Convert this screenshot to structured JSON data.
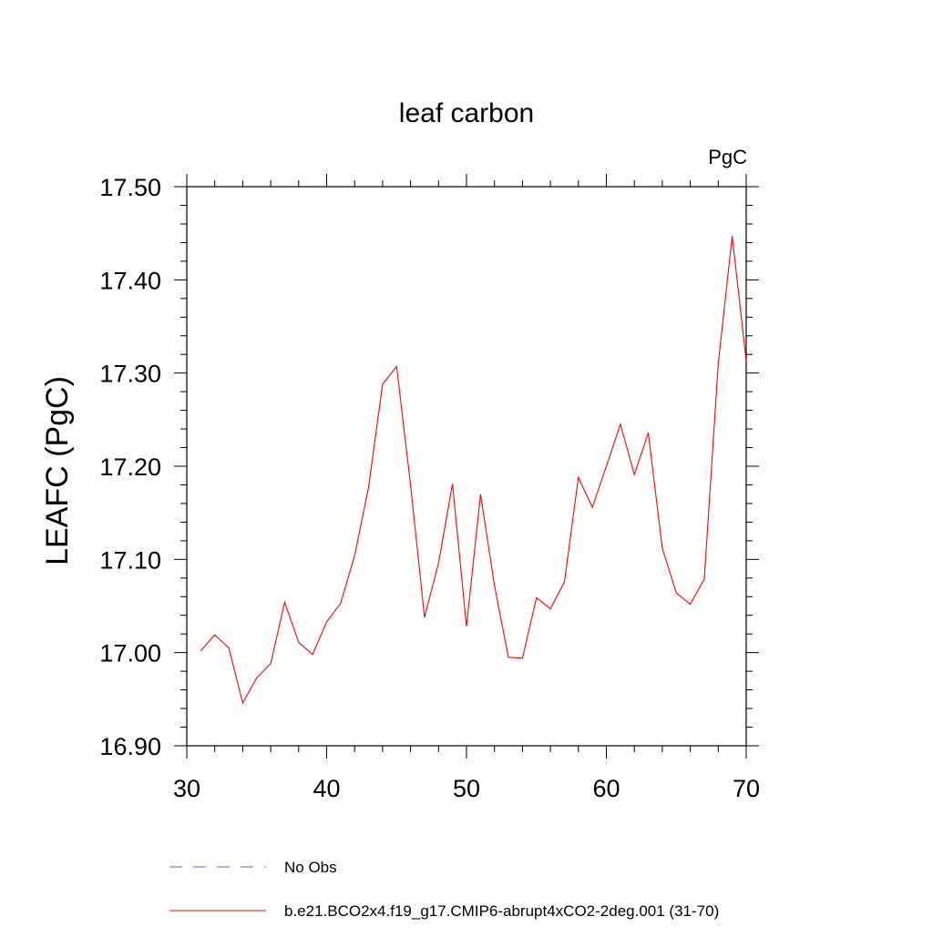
{
  "chart_data": {
    "type": "line",
    "title": "leaf carbon",
    "units_label": "PgC",
    "ylabel": "LEAFC  (PgC)",
    "xlabel": "",
    "xlim": [
      30,
      70
    ],
    "ylim": [
      16.9,
      17.5
    ],
    "x_ticks": [
      "30",
      "40",
      "50",
      "60",
      "70"
    ],
    "y_ticks": [
      "16.90",
      "17.00",
      "17.10",
      "17.20",
      "17.30",
      "17.40",
      "17.50"
    ],
    "grid": false,
    "legend_position": "bottom",
    "series": [
      {
        "name": "No Obs",
        "color": "#6a5acd",
        "style": "dashed",
        "x": [],
        "y": []
      },
      {
        "name": "b.e21.BCO2x4.f19_g17.CMIP6-abrupt4xCO2-2deg.001 (31-70)",
        "color": "#ff0000",
        "style": "solid",
        "x": [
          31,
          32,
          33,
          34,
          35,
          36,
          37,
          38,
          39,
          40,
          41,
          42,
          43,
          44,
          45,
          46,
          47,
          48,
          49,
          50,
          51,
          52,
          53,
          54,
          55,
          56,
          57,
          58,
          59,
          60,
          61,
          62,
          63,
          64,
          65,
          66,
          67,
          68,
          69,
          70
        ],
        "y": [
          17.002,
          17.019,
          17.005,
          16.946,
          16.973,
          16.988,
          17.054,
          17.011,
          16.998,
          17.033,
          17.053,
          17.104,
          17.178,
          17.288,
          17.307,
          17.18,
          17.038,
          17.096,
          17.181,
          17.028,
          17.17,
          17.072,
          16.995,
          16.994,
          17.059,
          17.047,
          17.076,
          17.188,
          17.156,
          17.2,
          17.245,
          17.191,
          17.236,
          17.112,
          17.064,
          17.052,
          17.079,
          17.31,
          17.447,
          17.313
        ]
      }
    ]
  }
}
